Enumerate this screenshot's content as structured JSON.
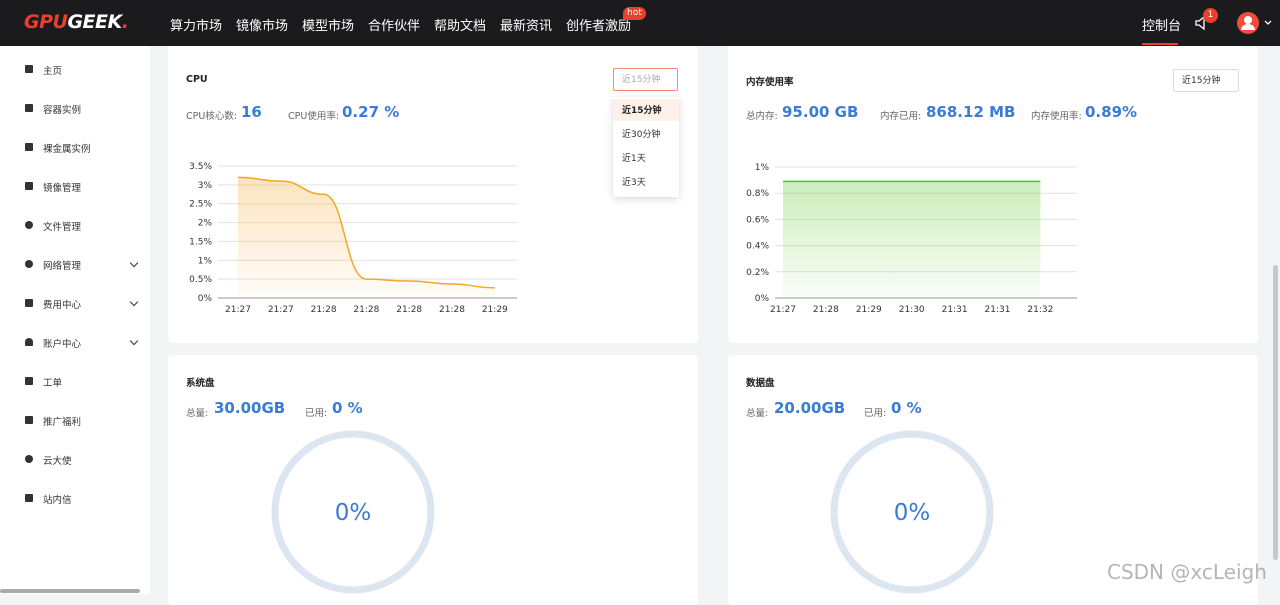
{
  "nav": {
    "logo": [
      "GPU",
      "GEEK",
      "."
    ],
    "links": [
      "算力市场",
      "镜像市场",
      "模型市场",
      "合作伙伴",
      "帮助文档",
      "最新资讯",
      "创作者激励"
    ],
    "hot": "hot",
    "console": "控制台",
    "badge": "1"
  },
  "sidebar": {
    "items": [
      "主页",
      "容器实例",
      "裸金属实例",
      "镜像管理",
      "文件管理",
      "网络管理",
      "费用中心",
      "账户中心",
      "工单",
      "推广福利",
      "云大使",
      "站内信"
    ]
  },
  "cpu": {
    "title": "CPU",
    "range": "近15分钟",
    "options": [
      "近15分钟",
      "近30分钟",
      "近1天",
      "近3天"
    ],
    "cores_label": "CPU核心数:",
    "cores": "16",
    "usage_label": "CPU使用率:",
    "usage": "0.27 %"
  },
  "memory": {
    "title": "内存使用率",
    "range": "近15分钟",
    "total_label": "总内存:",
    "total": "95.00 GB",
    "used_label": "内存已用:",
    "used": "868.12 MB",
    "rate_label": "内存使用率:",
    "rate": "0.89%"
  },
  "system_disk": {
    "title": "系统盘",
    "total_label": "总量:",
    "total": "30.00GB",
    "used_label": "已用:",
    "used": "0 %",
    "ring": "0%"
  },
  "data_disk": {
    "title": "数据盘",
    "total_label": "总量:",
    "total": "20.00GB",
    "used_label": "已用:",
    "used": "0 %",
    "ring": "0%"
  },
  "watermark": "CSDN @xcLeigh",
  "chart_data": [
    {
      "type": "area",
      "categories": [
        "21:27",
        "21:27",
        "21:28",
        "21:28",
        "21:28",
        "21:28",
        "21:29"
      ],
      "values": [
        3.2,
        3.1,
        2.75,
        0.5,
        0.45,
        0.37,
        0.27
      ],
      "color": "#f5a623",
      "ylim": [
        0,
        3.5
      ],
      "yticks": [
        {
          "value": 0,
          "label": "0%"
        },
        {
          "value": 0.5,
          "label": "0.5%"
        },
        {
          "value": 1,
          "label": "1%"
        },
        {
          "value": 1.5,
          "label": "1.5%"
        },
        {
          "value": 2,
          "label": "2%"
        },
        {
          "value": 2.5,
          "label": "2.5%"
        },
        {
          "value": 3,
          "label": "3%"
        },
        {
          "value": 3.5,
          "label": "3.5%"
        }
      ],
      "grid": true
    },
    {
      "type": "area",
      "categories": [
        "21:27",
        "21:28",
        "21:29",
        "21:30",
        "21:31",
        "21:31",
        "21:32"
      ],
      "values": [
        0.89,
        0.89,
        0.89,
        0.89,
        0.89,
        0.89,
        0.89
      ],
      "color": "#52c41a",
      "ylim": [
        0,
        1
      ],
      "yticks": [
        {
          "value": 0,
          "label": "0%"
        },
        {
          "value": 0.2,
          "label": "0.2%"
        },
        {
          "value": 0.4,
          "label": "0.4%"
        },
        {
          "value": 0.6,
          "label": "0.6%"
        },
        {
          "value": 0.8,
          "label": "0.8%"
        },
        {
          "value": 1,
          "label": "1%"
        }
      ],
      "grid": true
    }
  ]
}
